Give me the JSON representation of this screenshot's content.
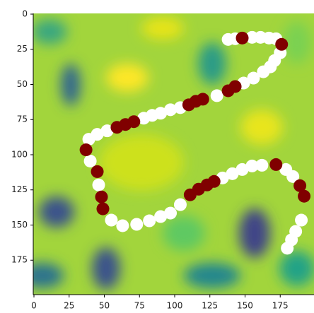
{
  "chart_data": {
    "type": "scatter",
    "xlim": [
      -0.5,
      199.5
    ],
    "ylim": [
      199.5,
      -0.5
    ],
    "xticks": [
      0,
      25,
      50,
      75,
      100,
      125,
      150,
      175
    ],
    "yticks": [
      0,
      25,
      50,
      75,
      100,
      125,
      150,
      175
    ],
    "series": [
      {
        "color": "#ffffff",
        "x": [
          138,
          143,
          155,
          161,
          167,
          172,
          175,
          171,
          168,
          163,
          156,
          149,
          130,
          104,
          97,
          90,
          84,
          78,
          52,
          45,
          39,
          40,
          46,
          55,
          63,
          73,
          82,
          90,
          97,
          104,
          134,
          141,
          148,
          155,
          162,
          179,
          184,
          190,
          186,
          183,
          180
        ],
        "values": [
          18,
          17.5,
          16.5,
          16.5,
          17,
          17.5,
          27.5,
          33,
          37.5,
          41,
          45.5,
          49,
          58,
          66.5,
          68,
          70.5,
          72,
          74,
          83,
          85.5,
          89,
          104.5,
          121.5,
          146.5,
          150.5,
          149.5,
          147,
          144,
          141.5,
          135.5,
          116.5,
          113.5,
          110.5,
          108,
          107.5,
          110.5,
          115.5,
          146.5,
          154.5,
          160.5,
          166.5
        ]
      },
      {
        "color": "#800000",
        "x": [
          148,
          176,
          143,
          138,
          120,
          115,
          110,
          71,
          65,
          59,
          37,
          45,
          48,
          49,
          111,
          117,
          123,
          128,
          172,
          189,
          192
        ],
        "values": [
          17,
          21.5,
          51.5,
          54.5,
          60.5,
          62,
          64.5,
          76.5,
          78.5,
          80.5,
          96.5,
          112,
          130,
          138.5,
          128.5,
          124.5,
          121.5,
          119,
          107,
          122,
          129.5
        ]
      }
    ]
  }
}
